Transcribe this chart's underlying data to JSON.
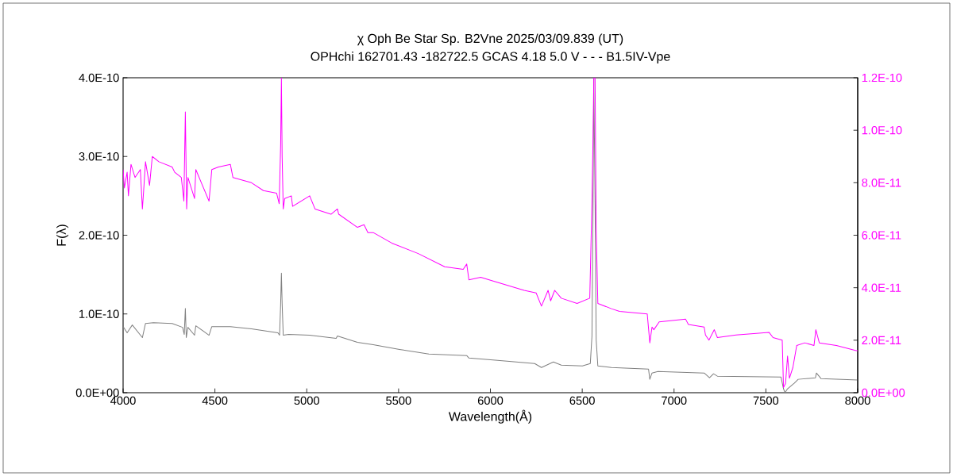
{
  "chart_data": {
    "type": "line",
    "title": "χ Oph Be Star Sp. B2Vne 2025/03/09.839 (UT)",
    "subtitle": "OPHchi 162701.43 -182722.5 GCAS 4.18 5.0 V - - - B1.5IV-Vpe",
    "xlabel": "Wavelength(Å)",
    "ylabel": "F(λ)",
    "xlim": [
      4000,
      8000
    ],
    "xticks": [
      4000,
      4500,
      5000,
      5500,
      6000,
      6500,
      7000,
      7500,
      8000
    ],
    "ylim": [
      0,
      4e-10
    ],
    "yticks": [
      {
        "value": 0,
        "label": "0.0E+00"
      },
      {
        "value": 1e-10,
        "label": "1.0E-10"
      },
      {
        "value": 2e-10,
        "label": "2.0E-10"
      },
      {
        "value": 3e-10,
        "label": "3.0E-10"
      },
      {
        "value": 4e-10,
        "label": "4.0E-10"
      }
    ],
    "y2lim": [
      0,
      1.2e-10
    ],
    "y2ticks": [
      {
        "value": 0,
        "label": "0.0E+00"
      },
      {
        "value": 2e-11,
        "label": "2.0E-11"
      },
      {
        "value": 4e-11,
        "label": "4.0E-11"
      },
      {
        "value": 6e-11,
        "label": "6.0E-11"
      },
      {
        "value": 8e-11,
        "label": "8.0E-11"
      },
      {
        "value": 1e-10,
        "label": "1.0E-10"
      },
      {
        "value": 1.2e-10,
        "label": "1.2E-10"
      }
    ],
    "series": [
      {
        "color": "#808080",
        "x": [
          4000,
          4022,
          4050,
          4105,
          4122,
          4165,
          4267,
          4324,
          4333,
          4339,
          4344,
          4353,
          4389,
          4396,
          4468,
          4483,
          4584,
          4699,
          4843,
          4852,
          4858,
          4862,
          4866,
          4872,
          4901,
          5016,
          5160,
          5167,
          5276,
          5362,
          5505,
          5665,
          5872,
          5883,
          6040,
          6241,
          6278,
          6343,
          6386,
          6501,
          6544,
          6553,
          6559,
          6563,
          6570,
          6576,
          6585,
          6659,
          6861,
          6868,
          6880,
          6912,
          7164,
          7193,
          7215,
          7236,
          7582,
          7596,
          7604,
          7618,
          7654,
          7676,
          7770,
          7775,
          7800,
          8000
        ],
        "values": [
          8.4e-11,
          7.6e-11,
          8.6e-11,
          7e-11,
          8.8e-11,
          8.9e-11,
          8.8e-11,
          8.3e-11,
          7.4e-11,
          1.07e-10,
          7e-11,
          8.3e-11,
          7.3e-11,
          8.5e-11,
          7.3e-11,
          8.4e-11,
          8.4e-11,
          8.1e-11,
          7.6e-11,
          7.3e-11,
          1.13e-10,
          1.52e-10,
          1.13e-10,
          7.3e-11,
          7.4e-11,
          7.3e-11,
          6.9e-11,
          7.2e-11,
          6.4e-11,
          6.1e-11,
          5.5e-11,
          4.9e-11,
          4.7e-11,
          4.4e-11,
          4.1e-11,
          3.7e-11,
          3.2e-11,
          3.9e-11,
          3.5e-11,
          3.4e-11,
          3.7e-11,
          7.2e-11,
          2.4e-10,
          4e-10,
          2.4e-10,
          6.7e-11,
          3.4e-11,
          3.2e-11,
          3e-11,
          1.7e-11,
          2.5e-11,
          2.7e-11,
          2.5e-11,
          1.9e-11,
          2.4e-11,
          2.1e-11,
          2e-11,
          5e-12,
          0,
          5e-12,
          1.2e-11,
          1.7e-11,
          1.9e-11,
          2.5e-11,
          1.8e-11,
          1.6e-11
        ]
      },
      {
        "color": "#ff00ff",
        "axis": "y2",
        "x": [
          4000,
          4007,
          4022,
          4029,
          4043,
          4065,
          4094,
          4105,
          4111,
          4122,
          4144,
          4159,
          4195,
          4267,
          4281,
          4317,
          4331,
          4339,
          4346,
          4353,
          4389,
          4396,
          4468,
          4483,
          4519,
          4584,
          4598,
          4699,
          4764,
          4836,
          4850,
          4858,
          4862,
          4866,
          4872,
          4880,
          4916,
          4923,
          5016,
          5045,
          5132,
          5167,
          5174,
          5276,
          5312,
          5333,
          5362,
          5463,
          5607,
          5751,
          5852,
          5871,
          5883,
          5947,
          6040,
          6184,
          6249,
          6278,
          6314,
          6328,
          6350,
          6386,
          6472,
          6541,
          6553,
          6559,
          6563,
          6570,
          6576,
          6585,
          6659,
          6703,
          6854,
          6868,
          6880,
          6890,
          6919,
          7063,
          7078,
          7164,
          7171,
          7190,
          7219,
          7236,
          7337,
          7517,
          7539,
          7589,
          7596,
          7607,
          7618,
          7628,
          7647,
          7668,
          7712,
          7762,
          7772,
          7791,
          7884,
          7992,
          8000
        ],
        "values": [
          8.5e-11,
          7.8e-11,
          8.4e-11,
          7.5e-11,
          8.7e-11,
          8.2e-11,
          8.5e-11,
          7e-11,
          7.6e-11,
          8.8e-11,
          7.9e-11,
          9e-11,
          8.8e-11,
          8.6e-11,
          8.4e-11,
          8.2e-11,
          7.3e-11,
          1.07e-10,
          7e-11,
          8.2e-11,
          7.4e-11,
          8.5e-11,
          7.3e-11,
          8.5e-11,
          8.6e-11,
          8.7e-11,
          8.2e-11,
          8e-11,
          7.7e-11,
          7.6e-11,
          7.2e-11,
          9.5e-11,
          1.2e-10,
          9e-11,
          7e-11,
          7.4e-11,
          7.5e-11,
          7.1e-11,
          7.5e-11,
          7e-11,
          6.8e-11,
          7e-11,
          6.8e-11,
          6.3e-11,
          6.4e-11,
          6.1e-11,
          6.1e-11,
          5.7e-11,
          5.3e-11,
          4.8e-11,
          4.7e-11,
          4.9e-11,
          4.3e-11,
          4.4e-11,
          4.2e-11,
          3.9e-11,
          3.8e-11,
          3.3e-11,
          3.9e-11,
          3.5e-11,
          3.9e-11,
          3.6e-11,
          3.4e-11,
          3.6e-11,
          7.3e-11,
          9.8e-11,
          1.2e-10,
          1.2e-10,
          6.2e-11,
          3.4e-11,
          3.2e-11,
          3.1e-11,
          3e-11,
          1.9e-11,
          2.5e-11,
          2.4e-11,
          2.7e-11,
          2.8e-11,
          2.6e-11,
          2.5e-11,
          2.2e-11,
          2e-11,
          2.4e-11,
          2.1e-11,
          2.2e-11,
          2.3e-11,
          2.1e-11,
          2e-11,
          2e-12,
          3.5e-12,
          1.4e-11,
          5.5e-12,
          9.6e-12,
          1.8e-11,
          1.9e-11,
          1.8e-11,
          2.4e-11,
          1.9e-11,
          1.8e-11,
          1.6e-11,
          1.6e-11
        ]
      }
    ]
  }
}
